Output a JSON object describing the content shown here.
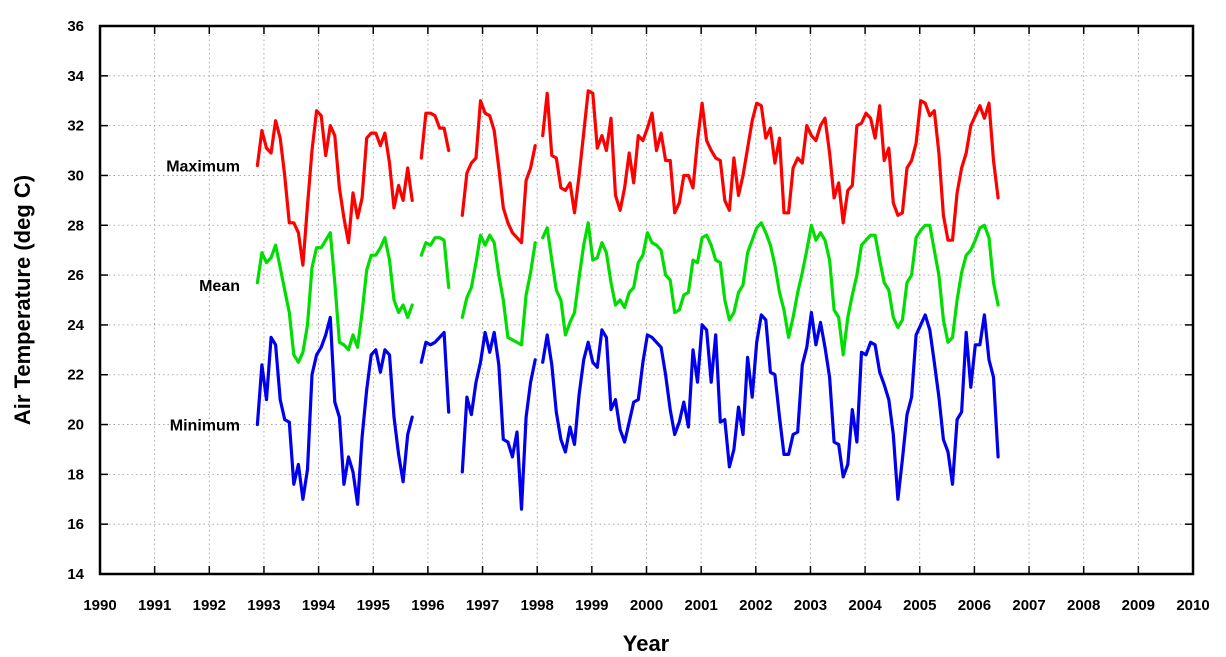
{
  "chart_data": {
    "type": "line",
    "xlabel": "Year",
    "ylabel": "Air Temperature (deg C)",
    "xlim": [
      1990,
      2010
    ],
    "ylim": [
      14,
      36
    ],
    "xticks": [
      "1990",
      "1991",
      "1992",
      "1993",
      "1994",
      "1995",
      "1996",
      "1997",
      "1998",
      "1999",
      "2000",
      "2001",
      "2002",
      "2003",
      "2004",
      "2005",
      "2006",
      "2007",
      "2008",
      "2009",
      "2010"
    ],
    "yticks": [
      "14",
      "16",
      "18",
      "20",
      "22",
      "24",
      "26",
      "28",
      "30",
      "32",
      "34",
      "36"
    ],
    "grid": true,
    "series_labels": [
      {
        "text": "Maximum",
        "at_y": 30.4
      },
      {
        "text": "Mean",
        "at_y": 25.6
      },
      {
        "text": "Minimum",
        "at_y": 20.0
      }
    ],
    "series": [
      {
        "name": "Maximum",
        "color": "#ff0000",
        "segments": [
          {
            "start": 1992.88,
            "values": [
              30.4,
              31.8,
              31.1,
              30.9,
              32.2,
              31.5,
              30.0,
              28.1,
              28.1,
              27.7,
              26.4,
              28.8,
              31.0,
              32.6,
              32.4,
              30.8,
              32.0,
              31.6,
              29.5,
              28.3,
              27.3,
              29.3,
              28.3,
              29.1,
              31.5,
              31.7,
              31.7,
              31.2,
              31.7,
              30.5,
              28.7,
              29.6,
              29.0,
              30.3,
              29.0
            ]
          },
          {
            "start": 1995.88,
            "values": [
              30.7,
              32.5,
              32.5,
              32.4,
              31.9,
              31.9,
              31.0
            ]
          },
          {
            "start": 1996.63,
            "values": [
              28.4,
              30.1,
              30.5,
              30.7,
              33.0,
              32.5,
              32.4,
              31.8,
              30.3,
              28.7,
              28.1,
              27.7,
              27.5,
              27.3,
              29.8,
              30.3,
              31.2
            ]
          },
          {
            "start": 1998.1,
            "values": [
              31.6,
              33.3,
              30.8,
              30.7,
              29.5,
              29.4,
              29.7,
              28.5,
              30.0,
              31.7,
              33.4,
              33.3,
              31.1,
              31.6,
              31.0,
              32.3,
              29.2,
              28.6,
              29.5,
              30.9,
              29.7,
              31.6,
              31.4,
              31.9,
              32.5,
              31.0,
              31.7,
              30.6,
              30.6,
              28.5,
              28.9,
              30.0,
              30.0,
              29.5,
              31.4,
              32.9,
              31.4,
              31.0,
              30.7,
              30.6,
              29.0,
              28.6,
              30.7,
              29.2,
              30.0,
              31.1,
              32.2,
              32.9,
              32.8,
              31.5,
              31.9,
              30.5,
              31.5,
              28.5,
              28.5,
              30.3,
              30.7,
              30.5,
              32.0,
              31.6,
              31.4,
              32.0,
              32.3,
              30.9,
              29.1,
              29.7,
              28.1,
              29.4,
              29.6,
              32.0,
              32.1,
              32.5,
              32.3,
              31.5,
              32.8,
              30.6,
              31.1,
              28.9,
              28.4,
              28.5,
              30.3,
              30.6,
              31.3,
              33.0,
              32.9,
              32.4,
              32.6,
              30.9,
              28.4,
              27.4,
              27.4,
              29.3,
              30.3,
              30.9,
              32.0,
              32.4,
              32.8,
              32.3,
              32.9,
              30.6,
              29.1
            ]
          }
        ]
      },
      {
        "name": "Mean",
        "color": "#00dd00",
        "segments": [
          {
            "start": 1992.88,
            "values": [
              25.7,
              26.9,
              26.5,
              26.7,
              27.2,
              26.3,
              25.4,
              24.5,
              22.8,
              22.5,
              22.9,
              24.0,
              26.3,
              27.1,
              27.1,
              27.4,
              27.7,
              25.7,
              23.3,
              23.2,
              23.0,
              23.6,
              23.1,
              24.5,
              26.2,
              26.8,
              26.8,
              27.1,
              27.5,
              26.6,
              25.0,
              24.5,
              24.8,
              24.3,
              24.8
            ]
          },
          {
            "start": 1995.88,
            "values": [
              26.8,
              27.3,
              27.2,
              27.5,
              27.5,
              27.4,
              25.5
            ]
          },
          {
            "start": 1996.63,
            "values": [
              24.3,
              25.1,
              25.5,
              26.5,
              27.6,
              27.2,
              27.6,
              27.3,
              26.0,
              25.0,
              23.5,
              23.4,
              23.3,
              23.2,
              25.2,
              26.1,
              27.3
            ]
          },
          {
            "start": 1998.1,
            "values": [
              27.5,
              27.9,
              26.6,
              25.4,
              25.0,
              23.6,
              24.1,
              24.5,
              25.9,
              27.2,
              28.1,
              26.6,
              26.7,
              27.3,
              26.9,
              25.7,
              24.8,
              25.0,
              24.7,
              25.3,
              25.5,
              26.5,
              26.8,
              27.7,
              27.3,
              27.2,
              27.0,
              26.0,
              25.8,
              24.5,
              24.6,
              25.2,
              25.3,
              26.6,
              26.5,
              27.5,
              27.6,
              27.2,
              26.6,
              26.5,
              25.0,
              24.2,
              24.5,
              25.3,
              25.6,
              26.9,
              27.4,
              27.9,
              28.1,
              27.7,
              27.2,
              26.4,
              25.3,
              24.6,
              23.5,
              24.3,
              25.3,
              26.1,
              27.0,
              28.0,
              27.4,
              27.7,
              27.4,
              26.6,
              24.6,
              24.3,
              22.8,
              24.3,
              25.2,
              26.0,
              27.2,
              27.4,
              27.6,
              27.6,
              26.6,
              25.7,
              25.4,
              24.3,
              23.9,
              24.2,
              25.7,
              26.0,
              27.5,
              27.8,
              28.0,
              28.0,
              27.0,
              26.0,
              24.2,
              23.3,
              23.5,
              25.0,
              26.1,
              26.8,
              27.0,
              27.4,
              27.9,
              28.0,
              27.5,
              25.7,
              24.8
            ]
          }
        ]
      },
      {
        "name": "Minimum",
        "color": "#0000ee",
        "segments": [
          {
            "start": 1992.88,
            "values": [
              20.0,
              22.4,
              21.0,
              23.5,
              23.2,
              21.0,
              20.2,
              20.1,
              17.6,
              18.4,
              17.0,
              18.2,
              22.0,
              22.8,
              23.1,
              23.6,
              24.3,
              20.9,
              20.3,
              17.6,
              18.7,
              18.1,
              16.8,
              19.5,
              21.4,
              22.8,
              23.0,
              22.1,
              23.0,
              22.8,
              20.3,
              18.8,
              17.7,
              19.6,
              20.3
            ]
          },
          {
            "start": 1995.88,
            "values": [
              22.5,
              23.3,
              23.2,
              23.3,
              23.5,
              23.7,
              20.5
            ]
          },
          {
            "start": 1996.63,
            "values": [
              18.1,
              21.1,
              20.4,
              21.7,
              22.5,
              23.7,
              22.9,
              23.7,
              22.4,
              19.4,
              19.3,
              18.7,
              19.7,
              16.6,
              20.3,
              21.7,
              22.6
            ]
          },
          {
            "start": 1998.1,
            "values": [
              22.5,
              23.6,
              22.4,
              20.5,
              19.4,
              18.9,
              19.9,
              19.2,
              21.2,
              22.6,
              23.3,
              22.5,
              22.3,
              23.8,
              23.5,
              20.6,
              21.0,
              19.8,
              19.3,
              20.1,
              20.9,
              21.0,
              22.5,
              23.6,
              23.5,
              23.3,
              23.1,
              22.0,
              20.6,
              19.6,
              20.1,
              20.9,
              19.9,
              23.0,
              21.7,
              24.0,
              23.8,
              21.7,
              23.6,
              20.1,
              20.2,
              18.3,
              19.0,
              20.7,
              19.6,
              22.7,
              21.1,
              23.3,
              24.4,
              24.2,
              22.1,
              22.0,
              20.3,
              18.8,
              18.8,
              19.6,
              19.7,
              22.4,
              23.1,
              24.5,
              23.2,
              24.1,
              23.1,
              21.9,
              19.3,
              19.2,
              17.9,
              18.4,
              20.6,
              19.3,
              22.9,
              22.8,
              23.3,
              23.2,
              22.1,
              21.6,
              21.0,
              19.6,
              17.0,
              18.6,
              20.4,
              21.1,
              23.6,
              24.0,
              24.4,
              23.8,
              22.5,
              21.1,
              19.4,
              18.9,
              17.6,
              20.2,
              20.5,
              23.7,
              21.5,
              23.2,
              23.2,
              24.4,
              22.6,
              21.9,
              18.7
            ]
          }
        ]
      }
    ]
  }
}
